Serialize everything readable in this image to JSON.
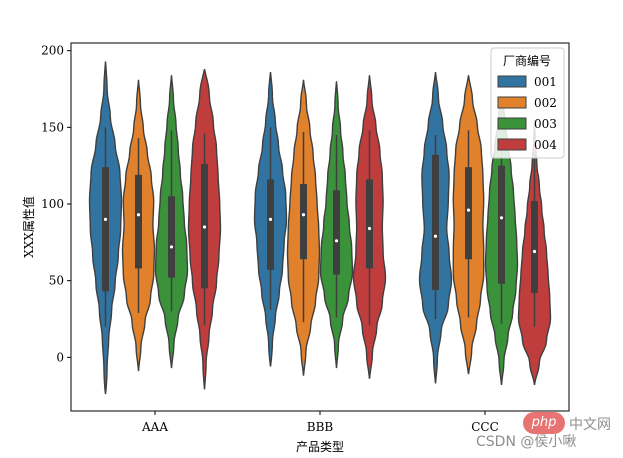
{
  "chart_data": {
    "type": "violin",
    "categories": [
      "AAA",
      "BBB",
      "CCC"
    ],
    "xlabel": "产品类型",
    "ylabel": "XXX属性值",
    "ylim": [
      -35,
      205
    ],
    "yticks": [
      0,
      50,
      100,
      150,
      200
    ],
    "legend": {
      "title": "厂商编号",
      "placement": "top-right"
    },
    "series": [
      {
        "name": "001",
        "color": "#3274a1",
        "min": [
          -24,
          -6,
          -17
        ],
        "max": [
          193,
          186,
          186
        ],
        "whisker_low": [
          20,
          31,
          25
        ],
        "whisker_high": [
          150,
          150,
          145
        ],
        "q1": [
          43,
          57,
          44
        ],
        "median": [
          90,
          90,
          79
        ],
        "q3": [
          124,
          116,
          132
        ],
        "shape": [
          [
            0.05,
            0.1,
            0.2,
            0.38,
            0.6,
            0.8,
            0.95,
            1.0,
            0.9,
            0.6,
            0.3,
            0.1,
            0.03
          ],
          [
            0.05,
            0.12,
            0.3,
            0.55,
            0.75,
            0.85,
            1.0,
            0.95,
            0.75,
            0.5,
            0.3,
            0.12,
            0.04
          ],
          [
            0.04,
            0.12,
            0.35,
            0.8,
            1.0,
            0.85,
            0.7,
            0.8,
            0.85,
            0.7,
            0.45,
            0.18,
            0.05
          ]
        ]
      },
      {
        "name": "002",
        "color": "#e1812c",
        "min": [
          -9,
          -12,
          -11
        ],
        "max": [
          181,
          181,
          184
        ],
        "whisker_low": [
          29,
          23,
          26
        ],
        "whisker_high": [
          143,
          147,
          148
        ],
        "q1": [
          58,
          64,
          64
        ],
        "median": [
          93,
          93,
          96
        ],
        "q3": [
          119,
          113,
          124
        ],
        "shape": [
          [
            0.03,
            0.15,
            0.4,
            0.75,
            0.95,
            1.0,
            0.9,
            0.95,
            0.8,
            0.55,
            0.3,
            0.12,
            0.03
          ],
          [
            0.04,
            0.15,
            0.45,
            0.75,
            0.95,
            1.0,
            0.95,
            0.85,
            0.75,
            0.6,
            0.4,
            0.18,
            0.05
          ],
          [
            0.05,
            0.2,
            0.5,
            0.75,
            0.95,
            0.95,
            0.9,
            0.95,
            0.9,
            0.8,
            0.55,
            0.25,
            0.06
          ]
        ]
      },
      {
        "name": "003",
        "color": "#3a923a",
        "min": [
          -7,
          -7,
          -18
        ],
        "max": [
          184,
          180,
          170
        ],
        "whisker_low": [
          30,
          26,
          22
        ],
        "whisker_high": [
          148,
          145,
          135
        ],
        "q1": [
          52,
          54,
          48
        ],
        "median": [
          72,
          76,
          91
        ],
        "q3": [
          105,
          109,
          125
        ],
        "shape": [
          [
            0.04,
            0.15,
            0.4,
            0.8,
            1.0,
            0.95,
            0.8,
            0.7,
            0.55,
            0.42,
            0.28,
            0.12,
            0.03
          ],
          [
            0.03,
            0.12,
            0.38,
            0.75,
            1.0,
            0.95,
            0.8,
            0.65,
            0.55,
            0.4,
            0.25,
            0.1,
            0.03
          ],
          [
            0.04,
            0.15,
            0.4,
            0.7,
            0.9,
            1.0,
            0.95,
            0.85,
            0.75,
            0.6,
            0.4,
            0.2,
            0.05
          ]
        ]
      },
      {
        "name": "004",
        "color": "#c03d3e",
        "min": [
          -21,
          -14,
          -18
        ],
        "max": [
          188,
          184,
          155
        ],
        "whisker_low": [
          21,
          21,
          20
        ],
        "whisker_high": [
          146,
          148,
          134
        ],
        "q1": [
          45,
          58,
          42
        ],
        "median": [
          85,
          84,
          69
        ],
        "q3": [
          126,
          116,
          102
        ],
        "shape": [
          [
            0.03,
            0.1,
            0.28,
            0.5,
            0.75,
            0.9,
            1.0,
            0.95,
            0.85,
            0.75,
            0.55,
            0.3,
            0.1
          ],
          [
            0.04,
            0.18,
            0.45,
            0.8,
            1.0,
            0.85,
            0.8,
            0.85,
            0.8,
            0.65,
            0.4,
            0.15,
            0.04
          ],
          [
            0.05,
            0.3,
            0.75,
            1.0,
            0.95,
            0.85,
            0.75,
            0.6,
            0.45,
            0.3,
            0.15,
            0.05,
            0.02
          ]
        ]
      }
    ]
  },
  "watermark": {
    "logo": "php",
    "site": "中文网",
    "credit": "CSDN @侯小啾"
  }
}
